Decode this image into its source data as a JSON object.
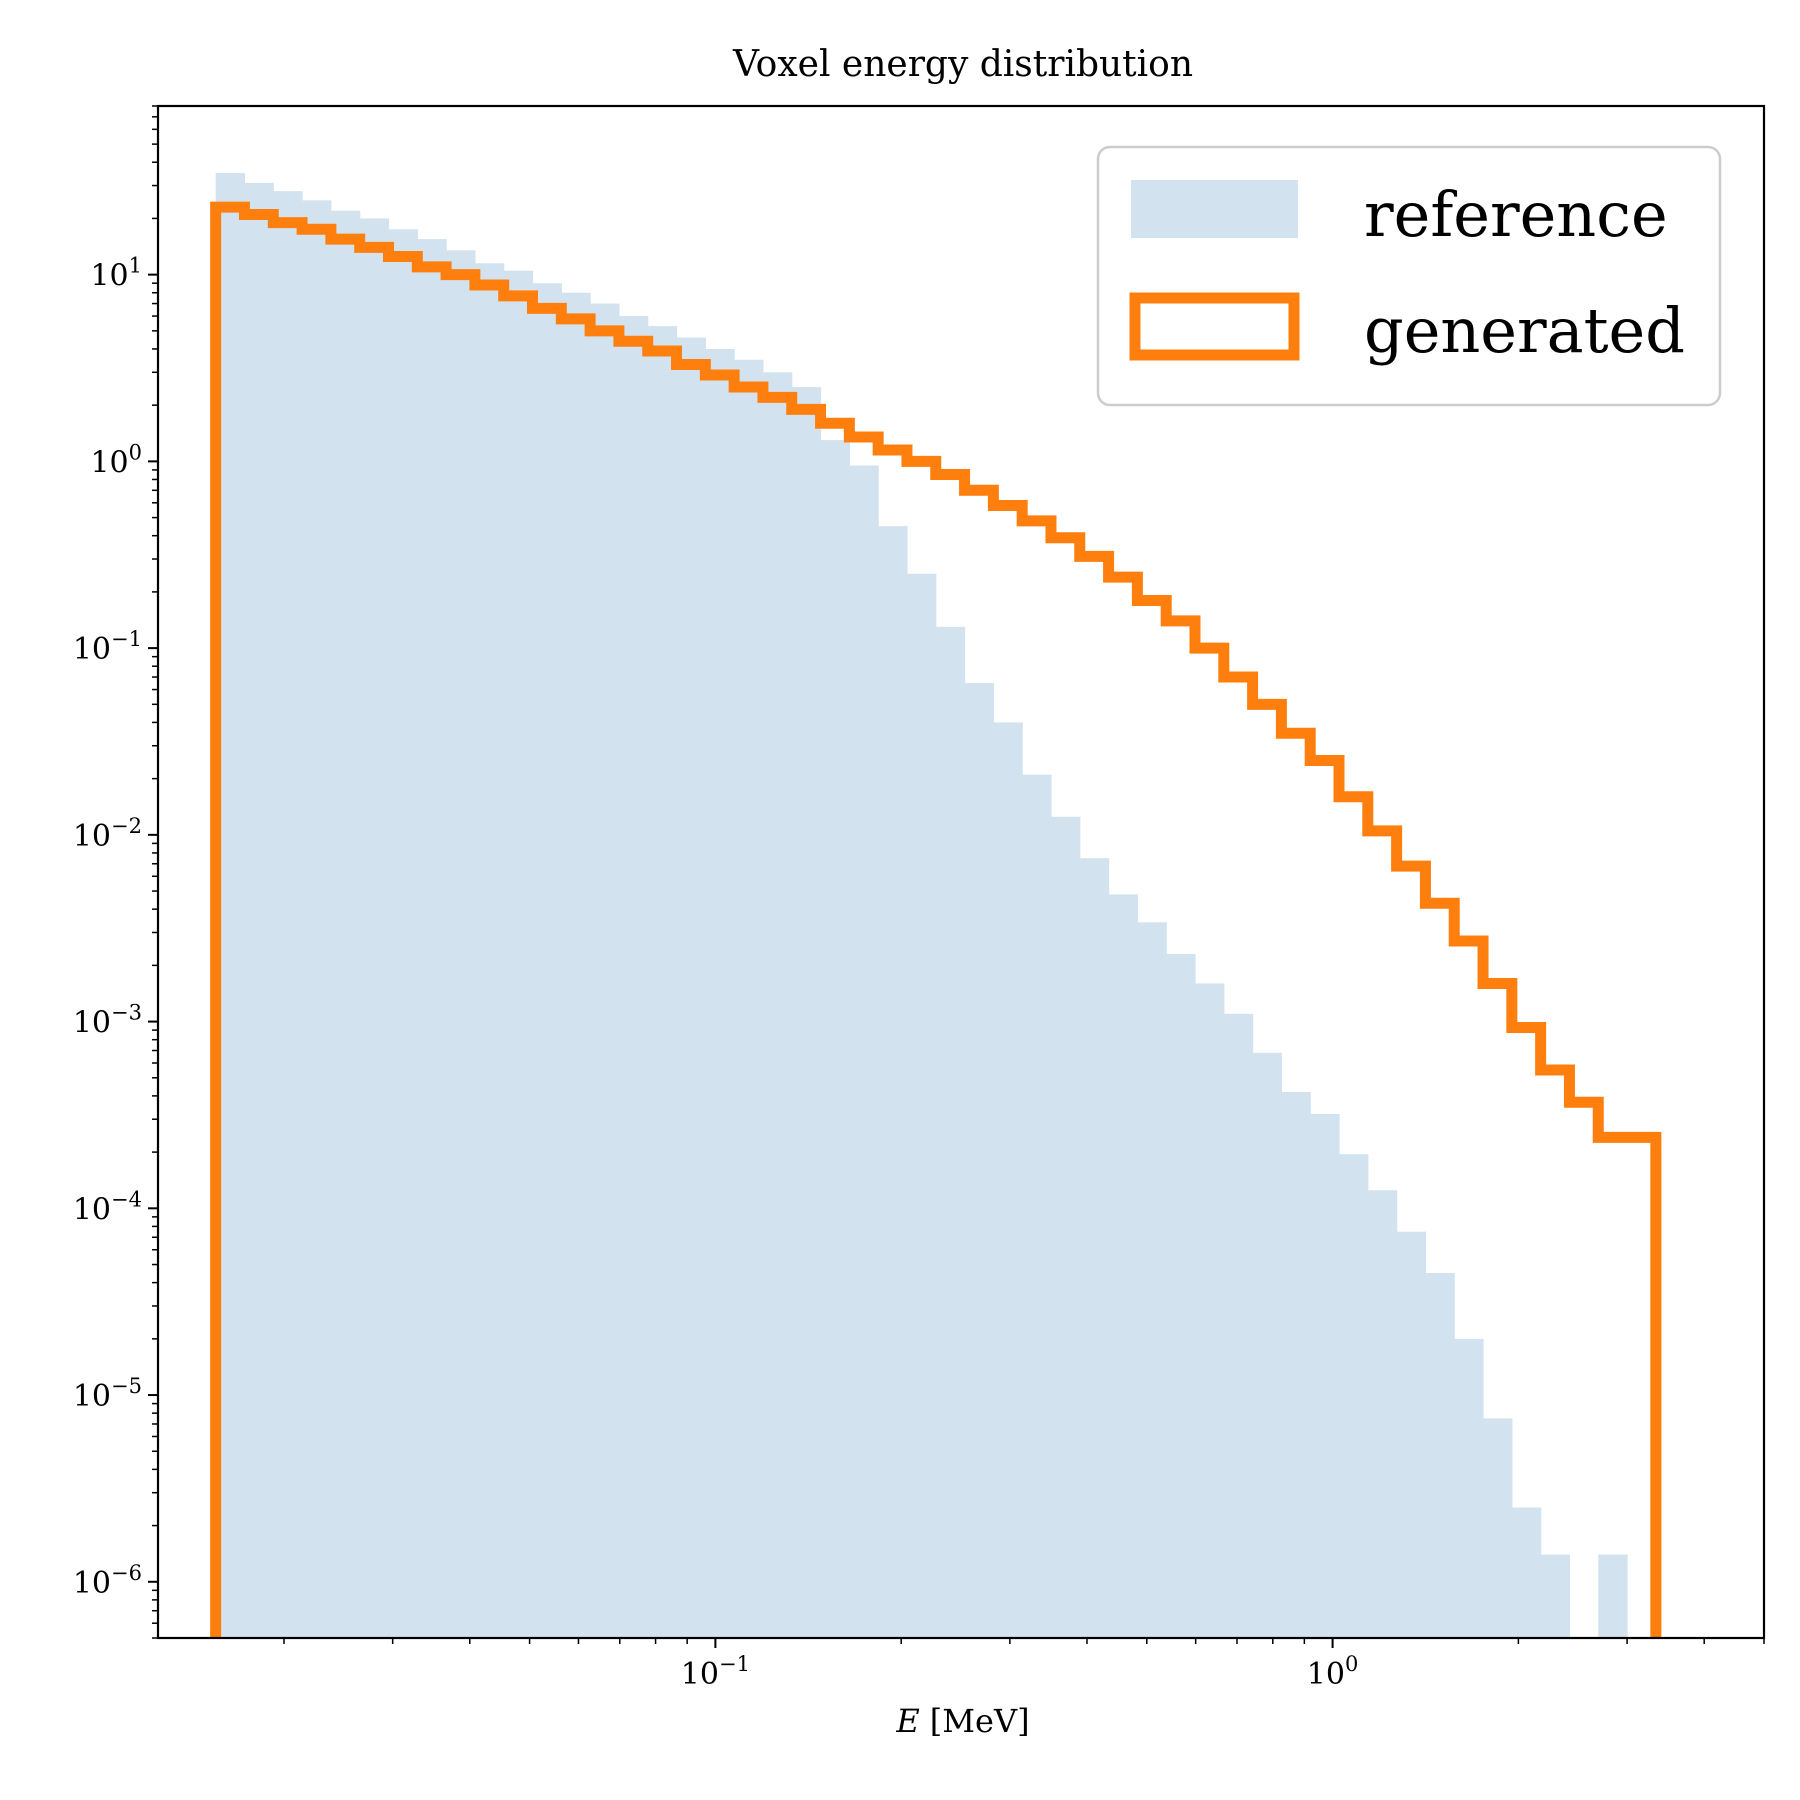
{
  "chart_data": {
    "type": "histogram",
    "title": "Voxel energy distribution",
    "xlabel_var": "E",
    "xlabel_unit": "[MeV]",
    "xscale": "log",
    "yscale": "log",
    "xlim": [
      0.0125,
      5.0
    ],
    "ylim": [
      5e-07,
      80
    ],
    "x_ticks": [
      {
        "value": 0.1,
        "base": "10",
        "exp": "−1"
      },
      {
        "value": 1,
        "base": "10",
        "exp": "0"
      }
    ],
    "y_ticks": [
      {
        "value": 10,
        "base": "10",
        "exp": "1"
      },
      {
        "value": 1,
        "base": "10",
        "exp": "0"
      },
      {
        "value": 0.1,
        "base": "10",
        "exp": "−1"
      },
      {
        "value": 0.01,
        "base": "10",
        "exp": "−2"
      },
      {
        "value": 0.001,
        "base": "10",
        "exp": "−3"
      },
      {
        "value": 0.0001,
        "base": "10",
        "exp": "−4"
      },
      {
        "value": 1e-05,
        "base": "10",
        "exp": "−5"
      },
      {
        "value": 1e-06,
        "base": "10",
        "exp": "−6"
      }
    ],
    "bins": {
      "start": 0.0155,
      "end": 3.34,
      "count": 50
    },
    "legend": {
      "position": "upper right"
    },
    "series": [
      {
        "name": "reference",
        "style": "filled",
        "color": "#d2e3ef",
        "values": [
          35,
          31,
          28,
          25,
          22,
          20,
          17.5,
          15.5,
          13.5,
          11.5,
          10.5,
          9,
          8,
          7,
          6,
          5.3,
          4.6,
          4,
          3.5,
          3,
          2.5,
          1.3,
          0.95,
          0.45,
          0.25,
          0.13,
          0.065,
          0.04,
          0.021,
          0.0125,
          0.0075,
          0.0048,
          0.0034,
          0.0023,
          0.0016,
          0.0011,
          0.00068,
          0.00042,
          0.00032,
          0.000195,
          0.000125,
          7.5e-05,
          4.5e-05,
          2e-05,
          7.5e-06,
          2.5e-06,
          1.4e-06,
          0,
          1.4e-06,
          0
        ]
      },
      {
        "name": "generated",
        "style": "step",
        "color": "#ff7f0e",
        "values": [
          23,
          21,
          19,
          17.5,
          15.5,
          14,
          12.5,
          11,
          10,
          8.8,
          7.7,
          6.6,
          5.8,
          5,
          4.4,
          3.9,
          3.3,
          2.9,
          2.5,
          2.2,
          1.9,
          1.6,
          1.35,
          1.15,
          1,
          0.85,
          0.7,
          0.58,
          0.48,
          0.39,
          0.31,
          0.24,
          0.18,
          0.14,
          0.1,
          0.07,
          0.05,
          0.035,
          0.025,
          0.016,
          0.0105,
          0.0068,
          0.0043,
          0.0027,
          0.0016,
          0.00093,
          0.00055,
          0.00037,
          0.00024,
          0.00024
        ]
      }
    ]
  }
}
